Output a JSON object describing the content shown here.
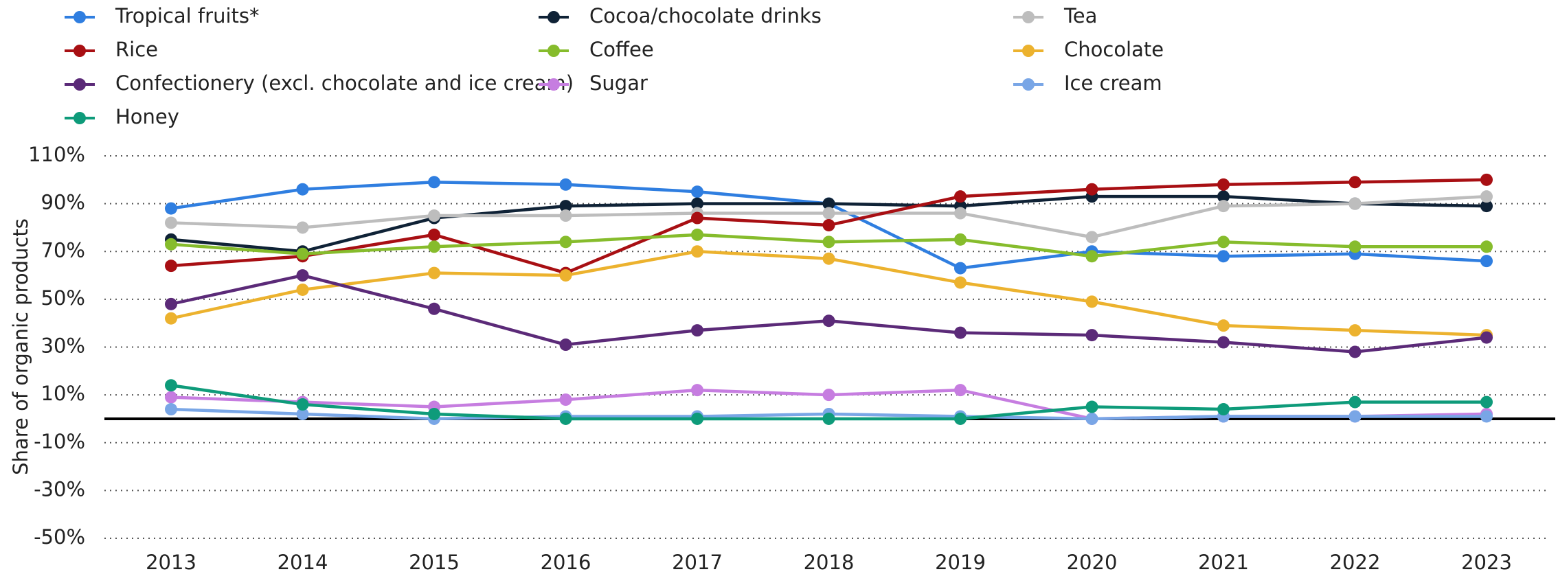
{
  "chart_data": {
    "type": "line",
    "y_label": "Share of organic products",
    "categories": [
      "2013",
      "2014",
      "2015",
      "2016",
      "2017",
      "2018",
      "2019",
      "2020",
      "2021",
      "2022",
      "2023"
    ],
    "ylim": [
      -50,
      110
    ],
    "yticks": [
      {
        "value": -50,
        "label": "-50%"
      },
      {
        "value": -30,
        "label": "-30%"
      },
      {
        "value": -10,
        "label": "-10%"
      },
      {
        "value": 10,
        "label": "10%"
      },
      {
        "value": 30,
        "label": "30%"
      },
      {
        "value": 50,
        "label": "50%"
      },
      {
        "value": 70,
        "label": "70%"
      },
      {
        "value": 90,
        "label": "90%"
      },
      {
        "value": 110,
        "label": "110%"
      }
    ],
    "grid": true,
    "series": [
      {
        "name": "Tropical fruits*",
        "color": "#2f7ee0",
        "values": [
          88,
          96,
          99,
          98,
          95,
          90,
          63,
          70,
          68,
          69,
          66
        ]
      },
      {
        "name": "Cocoa/chocolate drinks",
        "color": "#0f2236",
        "values": [
          75,
          70,
          84,
          89,
          90,
          90,
          89,
          93,
          93,
          90,
          89
        ]
      },
      {
        "name": "Tea",
        "color": "#bdbdbd",
        "values": [
          82,
          80,
          85,
          85,
          86,
          86,
          86,
          76,
          89,
          90,
          93
        ]
      },
      {
        "name": "Rice",
        "color": "#a80f13",
        "values": [
          64,
          68,
          77,
          61,
          84,
          81,
          93,
          96,
          98,
          99,
          100
        ]
      },
      {
        "name": "Coffee",
        "color": "#86bc2c",
        "values": [
          73,
          69,
          72,
          74,
          77,
          74,
          75,
          68,
          74,
          72,
          72
        ]
      },
      {
        "name": "Chocolate",
        "color": "#ecb22e",
        "values": [
          42,
          54,
          61,
          60,
          70,
          67,
          57,
          49,
          39,
          37,
          35
        ]
      },
      {
        "name": "Confectionery (excl. chocolate and ice cream)",
        "color": "#5b2a78",
        "values": [
          48,
          60,
          46,
          31,
          37,
          41,
          36,
          35,
          32,
          28,
          34
        ]
      },
      {
        "name": "Sugar",
        "color": "#c67de0",
        "values": [
          9,
          7,
          5,
          8,
          12,
          10,
          12,
          0,
          1,
          1,
          2
        ]
      },
      {
        "name": "Ice cream",
        "color": "#79a6e6",
        "values": [
          4,
          2,
          0,
          1,
          1,
          2,
          1,
          0,
          1,
          1,
          1
        ]
      },
      {
        "name": "Honey",
        "color": "#0e9b7a",
        "values": [
          14,
          6,
          2,
          0,
          0,
          0,
          0,
          5,
          4,
          7,
          7
        ]
      }
    ]
  }
}
